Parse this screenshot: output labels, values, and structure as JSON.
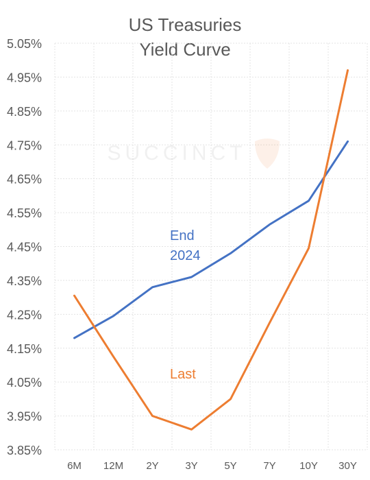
{
  "chart_data": {
    "type": "line",
    "title_lines": [
      "US Treasuries",
      "Yield Curve"
    ],
    "watermark": "SUCCINCT",
    "categories": [
      "6M",
      "12M",
      "2Y",
      "3Y",
      "5Y",
      "7Y",
      "10Y",
      "30Y"
    ],
    "ylim": [
      3.85,
      5.05
    ],
    "yticks": [
      "5.05%",
      "4.95%",
      "4.85%",
      "4.75%",
      "4.65%",
      "4.55%",
      "4.45%",
      "4.35%",
      "4.25%",
      "4.15%",
      "4.05%",
      "3.95%",
      "3.85%"
    ],
    "grid": true,
    "series": [
      {
        "name": "End 2024",
        "label_lines": [
          "End",
          "2024"
        ],
        "color": "#4472C4",
        "values": [
          4.18,
          4.245,
          4.33,
          4.36,
          4.43,
          4.515,
          4.585,
          4.76
        ]
      },
      {
        "name": "Last",
        "label_lines": [
          "Last"
        ],
        "color": "#ED7D31",
        "values": [
          4.305,
          4.125,
          3.95,
          3.91,
          4.0,
          4.225,
          4.445,
          4.97
        ]
      }
    ]
  }
}
